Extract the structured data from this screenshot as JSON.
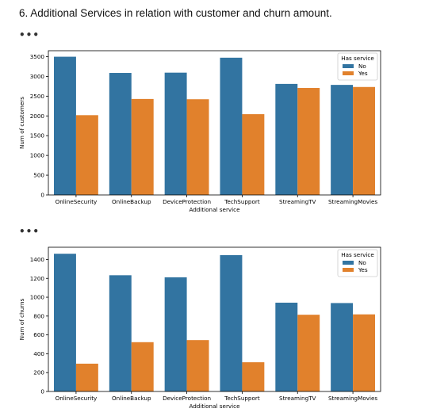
{
  "page": {
    "heading": "6. Additional Services in relation with customer and churn amount.",
    "output_marker": "•••"
  },
  "colors": {
    "no": "#3274a1",
    "yes": "#e1812c"
  },
  "chart_data": [
    {
      "type": "bar",
      "categories": [
        "OnlineSecurity",
        "OnlineBackup",
        "DeviceProtection",
        "TechSupport",
        "StreamingTV",
        "StreamingMovies"
      ],
      "series": [
        {
          "name": "No",
          "values": [
            3498,
            3088,
            3095,
            3473,
            2810,
            2785
          ]
        },
        {
          "name": "Yes",
          "values": [
            2019,
            2429,
            2422,
            2044,
            2707,
            2732
          ]
        }
      ],
      "xlabel": "Additional service",
      "ylabel": "Num of customers",
      "ylim": [
        0,
        3650
      ],
      "yticks": [
        0,
        500,
        1000,
        1500,
        2000,
        2500,
        3000,
        3500
      ],
      "legend_title": "Has service",
      "legend_placement": "top-right",
      "grid": false
    },
    {
      "type": "bar",
      "categories": [
        "OnlineSecurity",
        "OnlineBackup",
        "DeviceProtection",
        "TechSupport",
        "StreamingTV",
        "StreamingMovies"
      ],
      "series": [
        {
          "name": "No",
          "values": [
            1461,
            1233,
            1211,
            1446,
            942,
            938
          ]
        },
        {
          "name": "Yes",
          "values": [
            295,
            523,
            545,
            310,
            814,
            818
          ]
        }
      ],
      "xlabel": "Additional service",
      "ylabel": "Num of churns",
      "ylim": [
        0,
        1530
      ],
      "yticks": [
        0,
        200,
        400,
        600,
        800,
        1000,
        1200,
        1400
      ],
      "legend_title": "Has service",
      "legend_placement": "top-right",
      "grid": false
    }
  ]
}
